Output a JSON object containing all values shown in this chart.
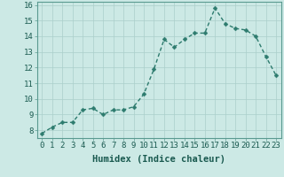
{
  "x": [
    0,
    1,
    2,
    3,
    4,
    5,
    6,
    7,
    8,
    9,
    10,
    11,
    12,
    13,
    14,
    15,
    16,
    17,
    18,
    19,
    20,
    21,
    22,
    23
  ],
  "y": [
    7.8,
    8.2,
    8.5,
    8.5,
    9.3,
    9.4,
    9.0,
    9.3,
    9.3,
    9.5,
    10.3,
    11.9,
    13.8,
    13.3,
    13.8,
    14.2,
    14.2,
    15.8,
    14.8,
    14.5,
    14.4,
    14.0,
    12.7,
    11.5
  ],
  "line_color": "#2d7b6e",
  "marker_color": "#2d7b6e",
  "bg_color": "#cce9e5",
  "grid_color": "#aacfca",
  "xlabel": "Humidex (Indice chaleur)",
  "xlim": [
    -0.5,
    23.5
  ],
  "ylim": [
    7.5,
    16.2
  ],
  "yticks": [
    8,
    9,
    10,
    11,
    12,
    13,
    14,
    15,
    16
  ],
  "xticks": [
    0,
    1,
    2,
    3,
    4,
    5,
    6,
    7,
    8,
    9,
    10,
    11,
    12,
    13,
    14,
    15,
    16,
    17,
    18,
    19,
    20,
    21,
    22,
    23
  ],
  "xtick_labels": [
    "0",
    "1",
    "2",
    "3",
    "4",
    "5",
    "6",
    "7",
    "8",
    "9",
    "10",
    "11",
    "12",
    "13",
    "14",
    "15",
    "16",
    "17",
    "18",
    "19",
    "20",
    "21",
    "22",
    "23"
  ],
  "xlabel_fontsize": 7.5,
  "tick_fontsize": 6.5,
  "line_width": 1.0,
  "marker_size": 2.5
}
